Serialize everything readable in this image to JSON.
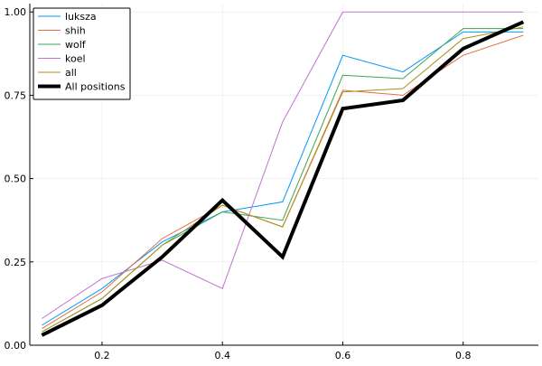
{
  "chart_data": {
    "type": "line",
    "title": "",
    "xlabel": "",
    "ylabel": "",
    "xlim": [
      0.08,
      0.925
    ],
    "ylim": [
      0.0,
      1.025
    ],
    "grid": true,
    "legend_position": "top-left",
    "x_ticks": [
      0.2,
      0.4,
      0.6,
      0.8
    ],
    "x_tick_labels": [
      "0.2",
      "0.4",
      "0.6",
      "0.8"
    ],
    "y_ticks": [
      0.0,
      0.25,
      0.5,
      0.75,
      1.0
    ],
    "y_tick_labels": [
      "0.00",
      "0.25",
      "0.50",
      "0.75",
      "1.00"
    ],
    "x": [
      0.1,
      0.2,
      0.3,
      0.4,
      0.5,
      0.6,
      0.7,
      0.8,
      0.9
    ],
    "series": [
      {
        "name": "luksza",
        "color": "#009AFA",
        "line_width": 1,
        "values": [
          0.06,
          0.17,
          0.31,
          0.4,
          0.43,
          0.87,
          0.82,
          0.94,
          0.94
        ]
      },
      {
        "name": "shih",
        "color": "#E36F47",
        "line_width": 1,
        "values": [
          0.05,
          0.16,
          0.32,
          0.42,
          0.355,
          0.765,
          0.75,
          0.87,
          0.93
        ]
      },
      {
        "name": "wolf",
        "color": "#3EA44E",
        "line_width": 1,
        "values": [
          0.04,
          0.14,
          0.3,
          0.4,
          0.375,
          0.81,
          0.8,
          0.95,
          0.95
        ]
      },
      {
        "name": "koel",
        "color": "#C371D2",
        "line_width": 1,
        "values": [
          0.08,
          0.2,
          0.255,
          0.17,
          0.67,
          1.0,
          1.0,
          1.0,
          1.0
        ]
      },
      {
        "name": "all",
        "color": "#AC8E18",
        "line_width": 1,
        "values": [
          0.04,
          0.14,
          0.3,
          0.42,
          0.355,
          0.76,
          0.77,
          0.92,
          0.955
        ]
      },
      {
        "name": "All positions",
        "color": "#000000",
        "line_width": 4,
        "values": [
          0.03,
          0.12,
          0.265,
          0.435,
          0.265,
          0.71,
          0.735,
          0.89,
          0.97
        ]
      }
    ]
  }
}
